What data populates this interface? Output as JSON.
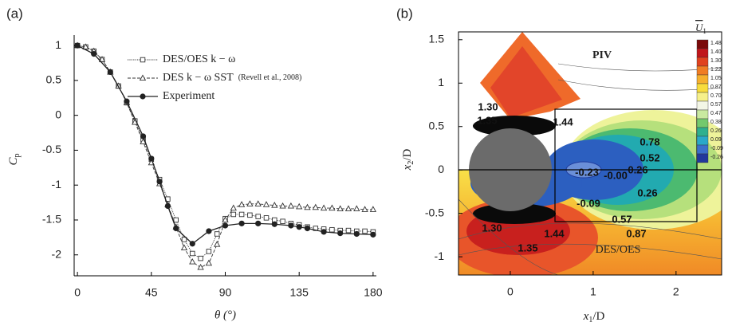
{
  "chart_data": [
    {
      "type": "line",
      "panel_label": "(a)",
      "xlabel": "θ (°)",
      "ylabel": {
        "base": "C",
        "sub": "p"
      },
      "xlim": [
        -2,
        182
      ],
      "ylim": [
        -2.3,
        1.15
      ],
      "xticks": [
        0,
        45,
        90,
        135,
        180
      ],
      "yticks": [
        1,
        0.5,
        0,
        -0.5,
        -1,
        -1.5,
        -2
      ],
      "series": [
        {
          "name": "DES/OES k − ω",
          "color": "#333333",
          "marker": "square",
          "line_style": "dotted",
          "x": [
            0,
            5,
            10,
            15,
            20,
            25,
            30,
            35,
            40,
            45,
            50,
            55,
            60,
            65,
            70,
            75,
            80,
            85,
            90,
            95,
            100,
            105,
            110,
            115,
            120,
            125,
            130,
            135,
            140,
            145,
            150,
            155,
            160,
            165,
            170,
            175,
            180
          ],
          "values": [
            1.0,
            0.98,
            0.92,
            0.8,
            0.62,
            0.42,
            0.18,
            -0.08,
            -0.35,
            -0.63,
            -0.92,
            -1.2,
            -1.5,
            -1.78,
            -1.98,
            -2.05,
            -1.95,
            -1.7,
            -1.48,
            -1.42,
            -1.42,
            -1.43,
            -1.45,
            -1.47,
            -1.5,
            -1.52,
            -1.55,
            -1.57,
            -1.6,
            -1.62,
            -1.63,
            -1.64,
            -1.65,
            -1.65,
            -1.66,
            -1.66,
            -1.67
          ]
        },
        {
          "name": "DES k − ω SST",
          "legend_note": "(Revell et al., 2008)",
          "color": "#333333",
          "marker": "triangle",
          "line_style": "dashed",
          "x": [
            0,
            5,
            10,
            15,
            20,
            25,
            30,
            35,
            40,
            45,
            50,
            55,
            60,
            65,
            70,
            75,
            80,
            85,
            90,
            95,
            100,
            105,
            110,
            115,
            120,
            125,
            130,
            135,
            140,
            145,
            150,
            155,
            160,
            165,
            170,
            175,
            180
          ],
          "values": [
            1.0,
            0.98,
            0.92,
            0.8,
            0.62,
            0.42,
            0.18,
            -0.1,
            -0.38,
            -0.68,
            -0.98,
            -1.28,
            -1.6,
            -1.9,
            -2.1,
            -2.18,
            -2.12,
            -1.85,
            -1.5,
            -1.33,
            -1.28,
            -1.27,
            -1.27,
            -1.28,
            -1.29,
            -1.3,
            -1.3,
            -1.31,
            -1.32,
            -1.32,
            -1.33,
            -1.33,
            -1.34,
            -1.34,
            -1.34,
            -1.35,
            -1.35
          ]
        },
        {
          "name": "Experiment",
          "color": "#222222",
          "marker": "circle",
          "line_style": "solid",
          "x": [
            0,
            10,
            20,
            30,
            40,
            45,
            50,
            55,
            60,
            70,
            80,
            90,
            100,
            110,
            120,
            130,
            135,
            140,
            150,
            160,
            170,
            180
          ],
          "values": [
            1.0,
            0.88,
            0.62,
            0.2,
            -0.3,
            -0.62,
            -0.95,
            -1.3,
            -1.62,
            -1.84,
            -1.66,
            -1.58,
            -1.55,
            -1.55,
            -1.56,
            -1.58,
            -1.6,
            -1.62,
            -1.67,
            -1.69,
            -1.7,
            -1.71
          ]
        }
      ]
    },
    {
      "type": "contour",
      "panel_label": "(b)",
      "xlabel": {
        "base": "x",
        "sub": "1",
        "rest": "/D"
      },
      "ylabel": {
        "base": "x",
        "sub": "2",
        "rest": "/D"
      },
      "xlim": [
        -0.625,
        2.55
      ],
      "ylim": [
        -1.21,
        1.59
      ],
      "xticks": [
        0,
        1,
        2
      ],
      "yticks": [
        1.5,
        1,
        0.5,
        0,
        -0.5,
        -1
      ],
      "region_labels": [
        "PIV",
        "DES/OES"
      ],
      "annotations": [
        "1.30",
        "1.35",
        "1.44",
        "0.78",
        "0.52",
        "-0.23",
        "-0.00",
        "0.26",
        "-0.09",
        "0.26",
        "0.57",
        "0.87",
        "1.30",
        "1.44",
        "1.35"
      ],
      "colorbar": {
        "title": {
          "base": "U",
          "sub": "1"
        },
        "ticks": [
          1.48,
          {
            "value": 1.4,
            "label": "1.40"
          },
          {
            "value": 1.3,
            "label": "1.30"
          },
          1.22,
          1.05,
          0.87,
          {
            "value": 0.7,
            "label": "0.70"
          },
          0.57,
          0.47,
          0.38,
          0.26,
          0.09,
          -0.09,
          -0.26
        ],
        "colors": [
          "#7a0a0a",
          "#c0161b",
          "#e0421f",
          "#f07d24",
          "#f6b02e",
          "#f8dc3c",
          "#f6f08a",
          "#f3f6e6",
          "#c9e9a0",
          "#74c96d",
          "#2fb08e",
          "#2aa8c9",
          "#3b6fcb",
          "#22389c"
        ]
      }
    }
  ]
}
